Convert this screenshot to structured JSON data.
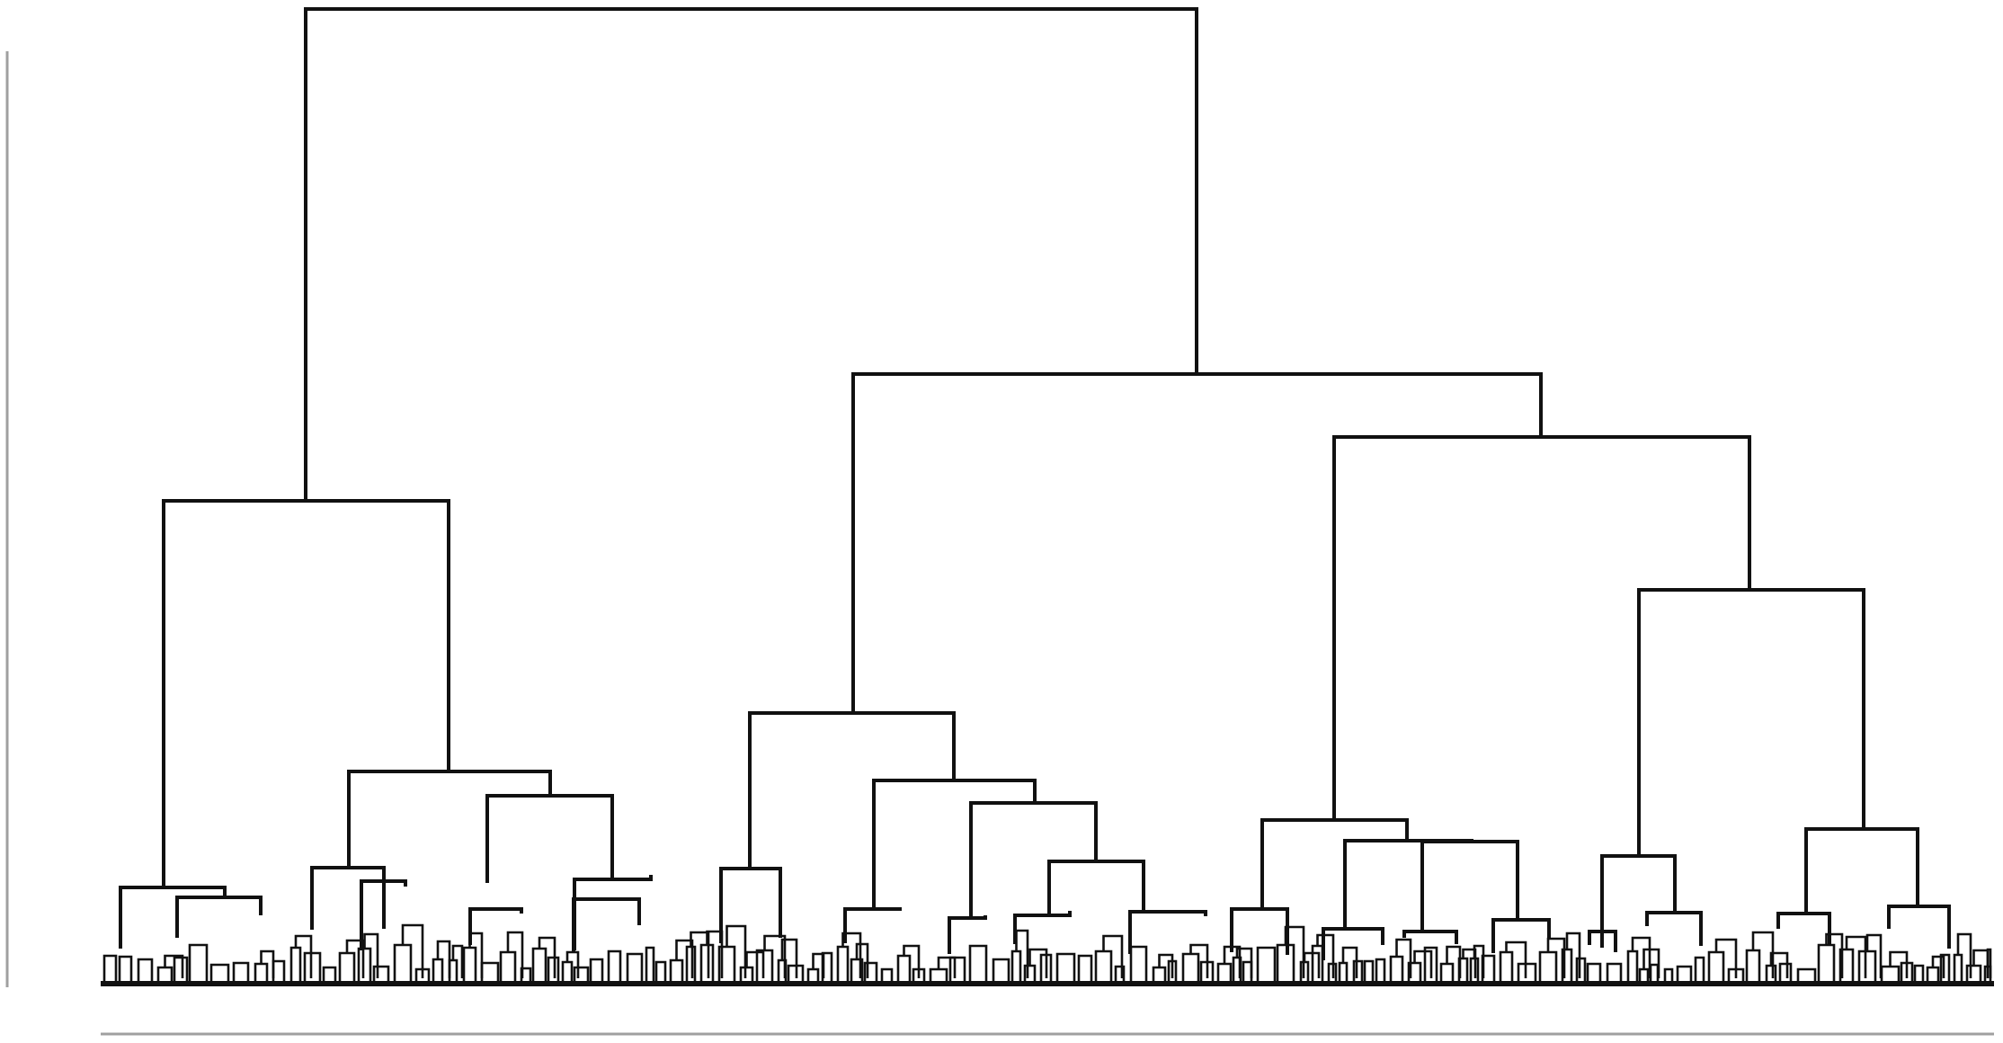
{
  "diagram": {
    "type": "dendrogram",
    "orientation": "top-down",
    "labels_shown": false,
    "line_color": "#111111",
    "axis_color": "#a0a0a0",
    "background": "#ffffff"
  }
}
